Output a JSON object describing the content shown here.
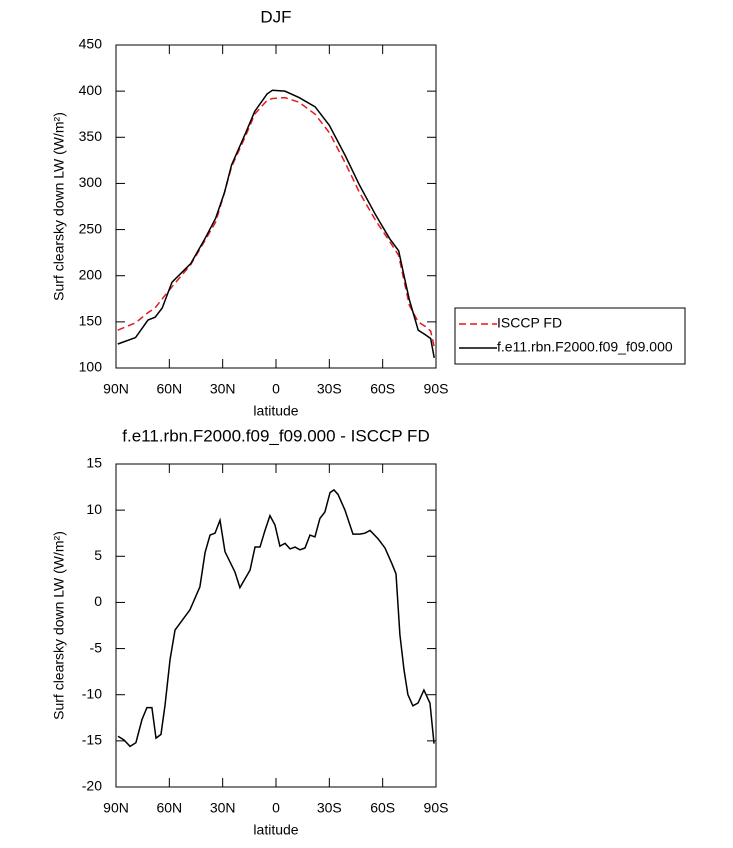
{
  "chart_data": [
    {
      "type": "line",
      "title": "DJF",
      "xlabel": "latitude",
      "ylabel": "Surf clearsky down LW (W/m²)",
      "x": [
        89,
        79,
        72,
        68,
        64,
        58.5,
        48,
        40,
        34,
        29,
        25,
        17,
        12,
        5,
        2,
        -5,
        -13,
        -22,
        -30,
        -39,
        -47,
        -56,
        -64,
        -69,
        -72,
        -75,
        -80,
        -84,
        -87,
        -89
      ],
      "series": [
        {
          "name": "ISCCP FD",
          "color": "#e41a1c",
          "line_style": "dashed",
          "values": [
            141,
            149,
            160,
            165,
            175,
            188,
            212,
            238,
            258,
            290,
            318,
            352,
            375,
            390,
            392,
            393,
            388,
            375,
            355,
            322,
            290,
            260,
            237,
            222,
            195,
            168,
            150,
            145,
            140,
            123
          ]
        },
        {
          "name": "f.e11.rbn.F2000.f09_f09.000",
          "color": "#000000",
          "line_style": "solid",
          "values": [
            126,
            133,
            152,
            155,
            165,
            193,
            213,
            240,
            262,
            290,
            320,
            355,
            378,
            397,
            401,
            400,
            393,
            383,
            363,
            330,
            298,
            266,
            240,
            227,
            200,
            174,
            141,
            136,
            132,
            111
          ]
        }
      ],
      "xlim": [
        90,
        -90
      ],
      "xticks": [
        {
          "value": 90,
          "label": "90N"
        },
        {
          "value": 60,
          "label": "60N"
        },
        {
          "value": 30,
          "label": "30N"
        },
        0,
        {
          "value": -30,
          "label": "30S"
        },
        {
          "value": -60,
          "label": "60S"
        },
        {
          "value": -90,
          "label": "90S"
        }
      ],
      "ylim": [
        100,
        450
      ],
      "yticks": [
        100,
        150,
        200,
        250,
        300,
        350,
        400,
        450
      ],
      "legend": "right"
    },
    {
      "type": "line",
      "title": "f.e11.rbn.F2000.f09_f09.000 - ISCCP FD",
      "xlabel": "latitude",
      "ylabel": "Surf clearsky down LW (W/m²)",
      "x": [
        88.9,
        85.5,
        82.1,
        78.8,
        75.4,
        72.6,
        69.8,
        67.5,
        64.7,
        62.4,
        59.6,
        56.8,
        48.4,
        42.8,
        39.9,
        37.1,
        34.3,
        31.5,
        28.7,
        23.1,
        20.3,
        14.6,
        11.8,
        9,
        6.2,
        3.4,
        0.6,
        -2.2,
        -5.1,
        -7.9,
        -10.7,
        -13.5,
        -16.3,
        -19.1,
        -21.9,
        -24.7,
        -27.5,
        -30.4,
        -32.6,
        -34.9,
        -38.8,
        -43.3,
        -47.2,
        -50,
        -52.9,
        -57.4,
        -61.3,
        -65.2,
        -67.5,
        -69.7,
        -72,
        -74.2,
        -77,
        -79.9,
        -83.2,
        -86.6,
        -88.9
      ],
      "series": [
        {
          "color": "#000000",
          "line_style": "solid",
          "values": [
            -14.5,
            -14.9,
            -15.6,
            -15.2,
            -12.7,
            -11.4,
            -11.4,
            -14.7,
            -14.3,
            -11.1,
            -6.2,
            -3.0,
            -0.8,
            1.7,
            5.4,
            7.3,
            7.5,
            8.9,
            5.5,
            3.3,
            1.6,
            3.5,
            6.0,
            6.0,
            7.8,
            9.4,
            8.4,
            6.1,
            6.4,
            5.8,
            6.0,
            5.7,
            5.9,
            7.3,
            7.1,
            9.1,
            9.8,
            11.9,
            12.2,
            11.7,
            10.0,
            7.4,
            7.4,
            7.5,
            7.8,
            6.9,
            5.9,
            4.2,
            3.1,
            -3.5,
            -7.3,
            -10.0,
            -11.2,
            -10.9,
            -9.5,
            -10.9,
            -15.3
          ]
        }
      ],
      "xlim": [
        90,
        -90
      ],
      "xticks": [
        {
          "value": 90,
          "label": "90N"
        },
        {
          "value": 60,
          "label": "60N"
        },
        {
          "value": 30,
          "label": "30N"
        },
        0,
        {
          "value": -30,
          "label": "30S"
        },
        {
          "value": -60,
          "label": "60S"
        },
        {
          "value": -90,
          "label": "90S"
        }
      ],
      "ylim": [
        -20,
        15
      ],
      "yticks": [
        -20,
        -15,
        -10,
        -5,
        0,
        5,
        10,
        15
      ]
    }
  ]
}
